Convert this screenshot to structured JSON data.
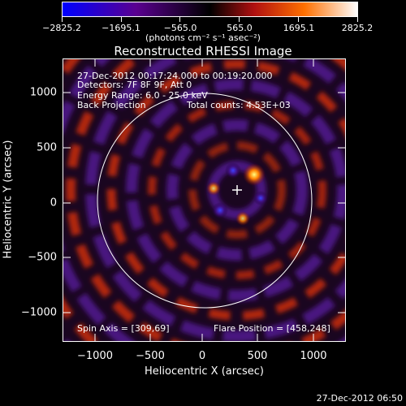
{
  "colorbar": {
    "ticks": [
      "−2825.2",
      "−1695.1",
      "−565.0",
      "565.0",
      "1695.1",
      "2825.2"
    ],
    "units": "(photons cm⁻² s⁻¹ asec⁻²)",
    "colors": [
      "#0000ff",
      "#5a0090",
      "#000000",
      "#b01010",
      "#ff7000",
      "#ffffff"
    ]
  },
  "title": "Reconstructed RHESSI Image",
  "info": {
    "time": "27-Dec-2012 00:17:24.000 to 00:19:20.000",
    "detectors": "Detectors: 7F 8F 9F, Att 0",
    "energy": "Energy Range: 6.0 - 25.0 keV",
    "method": "Back Projection",
    "counts": "Total counts: 4.53E+03",
    "spin_axis": "Spin Axis = [309,69]",
    "flare_position": "Flare Position = [458,248]"
  },
  "axes": {
    "xlabel": "Heliocentric X (arcsec)",
    "ylabel": "Heliocentric Y (arcsec)",
    "xticks": [
      "−1000",
      "−500",
      "0",
      "500",
      "1000"
    ],
    "yticks": [
      "1000",
      "500",
      "0",
      "−500",
      "−1000"
    ]
  },
  "footer": "27-Dec-2012 06:50"
}
